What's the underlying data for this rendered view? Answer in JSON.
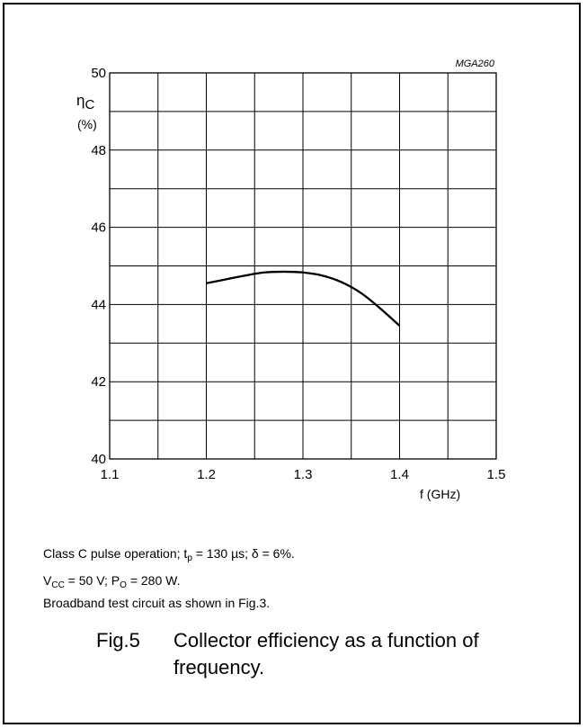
{
  "chart_data": {
    "type": "line",
    "code": "MGA260",
    "ylabel_symbol": "η",
    "ylabel_subscript": "C",
    "ylabel_unit": "(%)",
    "xlabel": "f (GHz)",
    "xlim": [
      1.1,
      1.5
    ],
    "ylim": [
      40,
      50
    ],
    "x_ticks": [
      1.1,
      1.2,
      1.3,
      1.4,
      1.5
    ],
    "x_tick_labels": [
      "1.1",
      "1.2",
      "1.3",
      "1.4",
      "1.5"
    ],
    "y_ticks": [
      40,
      42,
      44,
      46,
      48,
      50
    ],
    "y_tick_labels": [
      "40",
      "42",
      "44",
      "46",
      "48",
      "50"
    ],
    "x_minor_step": 0.05,
    "y_minor_step": 1,
    "grid": true,
    "series": [
      {
        "x": [
          1.2,
          1.22,
          1.24,
          1.26,
          1.28,
          1.3,
          1.32,
          1.34,
          1.36,
          1.38,
          1.4
        ],
        "y": [
          44.55,
          44.65,
          44.75,
          44.83,
          44.85,
          44.83,
          44.75,
          44.58,
          44.3,
          43.9,
          43.45
        ]
      }
    ]
  },
  "notes": {
    "line1": {
      "a": "Class C pulse operation; t",
      "b": "p",
      "c": " = 130 µs; δ = 6%."
    },
    "line2": {
      "a": "V",
      "b": "CC",
      "c": " = 50 V; P",
      "d": "O",
      "e": " = 280 W."
    },
    "line3": "Broadband test circuit as shown in Fig.3."
  },
  "caption": {
    "number": "Fig.5",
    "text": "Collector efficiency as a function of frequency."
  }
}
